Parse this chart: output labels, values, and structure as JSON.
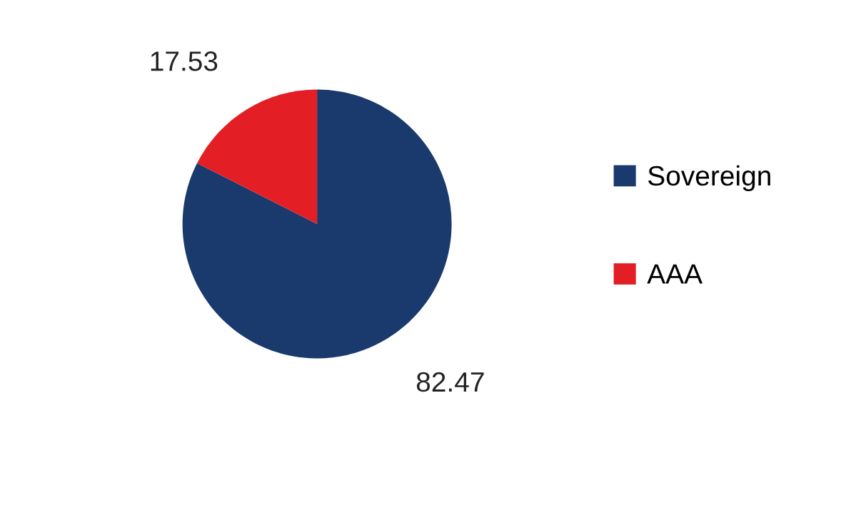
{
  "chart_data": {
    "type": "pie",
    "categories": [
      "Sovereign",
      "AAA"
    ],
    "values": [
      82.47,
      17.53
    ],
    "colors": [
      "#1a3a6e",
      "#e31e24"
    ],
    "data_labels": true,
    "legend": "right"
  }
}
